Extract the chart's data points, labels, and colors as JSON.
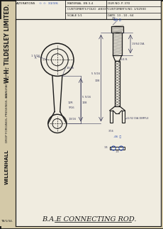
{
  "bg_color": "#d4c9a8",
  "paper_color": "#e8e2ce",
  "inner_paper": "#f0ece0",
  "line_color": "#1a1a1a",
  "blue_color": "#2244aa",
  "pencil_color": "#3a3a5a",
  "title": "B.A.E CONNECTING ROD.",
  "header": {
    "alterations_label": "ALTERATIONS",
    "alterations_val": "© ©  33/3/6",
    "material_label": "MATERIAL",
    "material_val": "EN 3-4",
    "our_no_label": "OUR NO. P. 370",
    "customer_folio_label": "CUSTOMER'S FOLIO",
    "customer_folio_val": "#8337",
    "customer_no_label": "CUSTOMER'S NO.",
    "customer_no_val": "1/32930",
    "scale_label": "SCALE 1/1",
    "date_label": "DATE",
    "date_val": "13 - 10 - 64"
  },
  "company": {
    "line1": "W. H. TILDESLEY LIMITED.",
    "line2": "MANUFACTURERS OF",
    "line3": "DROP FORGINGS, PRESSINGS, &C.",
    "line4": "WILLENHALL"
  },
  "bottom_ref": "TB/1/34."
}
